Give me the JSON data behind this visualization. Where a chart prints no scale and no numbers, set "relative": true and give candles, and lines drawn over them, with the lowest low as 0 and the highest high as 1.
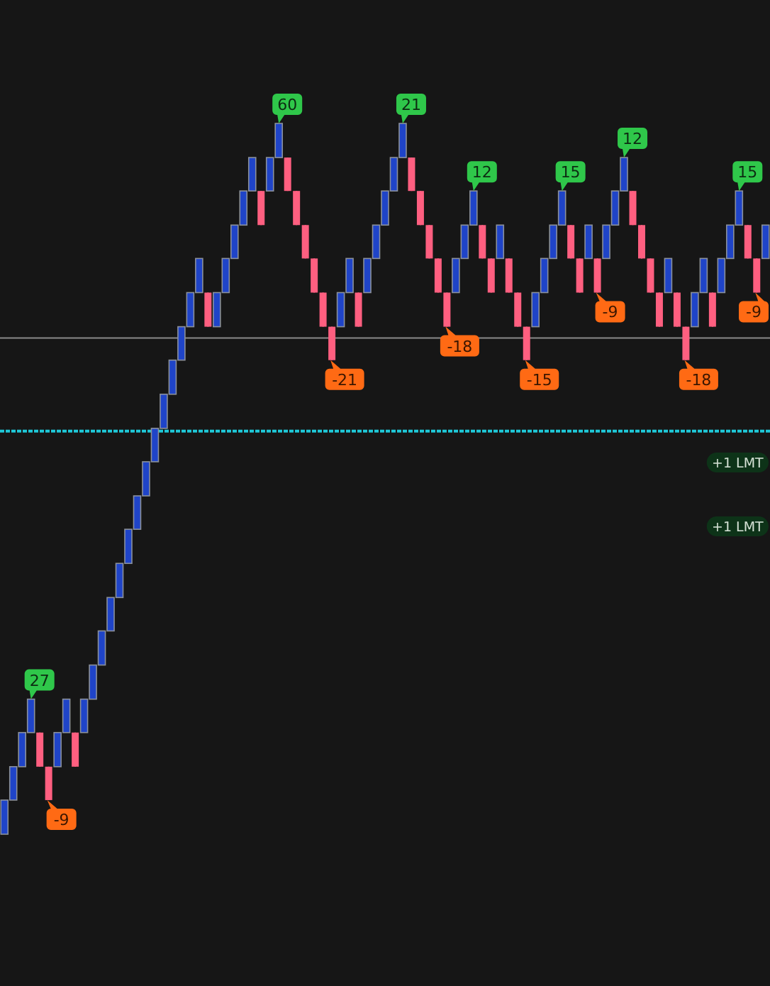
{
  "chart_data": {
    "type": "candlestick",
    "relative": true,
    "categories": [
      null,
      null,
      null,
      null,
      null,
      null,
      null,
      null,
      null,
      null,
      null,
      null,
      null,
      null,
      null,
      null,
      null,
      null,
      null,
      null,
      null,
      null,
      null,
      null,
      null,
      null,
      null,
      null,
      null,
      null,
      null,
      null,
      null,
      null,
      null,
      null,
      null,
      null,
      null,
      null,
      null,
      null,
      null,
      null,
      null,
      null,
      null,
      null,
      null,
      null,
      null,
      null,
      null,
      null,
      null,
      null,
      null,
      null,
      null,
      null,
      null,
      null,
      null,
      null,
      null,
      null,
      null,
      null,
      null,
      null,
      null,
      null,
      null,
      null,
      null,
      null,
      null,
      null,
      null,
      null,
      null,
      null,
      null,
      null,
      null,
      null,
      null
    ],
    "ohlc": [
      [
        0,
        0.048,
        0,
        0.048
      ],
      [
        0.048,
        0.095,
        0.048,
        0.095
      ],
      [
        0.095,
        0.143,
        0.095,
        0.143
      ],
      [
        0.143,
        0.19,
        0.143,
        0.19
      ],
      [
        0.143,
        0.143,
        0.095,
        0.095
      ],
      [
        0.095,
        0.095,
        0.048,
        0.048
      ],
      [
        0.095,
        0.143,
        0.095,
        0.143
      ],
      [
        0.143,
        0.19,
        0.143,
        0.19
      ],
      [
        0.143,
        0.143,
        0.095,
        0.095
      ],
      [
        0.143,
        0.19,
        0.143,
        0.19
      ],
      [
        0.19,
        0.238,
        0.19,
        0.238
      ],
      [
        0.238,
        0.286,
        0.238,
        0.286
      ],
      [
        0.286,
        0.333,
        0.286,
        0.333
      ],
      [
        0.333,
        0.381,
        0.333,
        0.381
      ],
      [
        0.381,
        0.429,
        0.381,
        0.429
      ],
      [
        0.429,
        0.476,
        0.429,
        0.476
      ],
      [
        0.476,
        0.524,
        0.476,
        0.524
      ],
      [
        0.524,
        0.571,
        0.524,
        0.571
      ],
      [
        0.571,
        0.619,
        0.571,
        0.619
      ],
      [
        0.619,
        0.667,
        0.619,
        0.667
      ],
      [
        0.667,
        0.714,
        0.667,
        0.714
      ],
      [
        0.714,
        0.762,
        0.714,
        0.762
      ],
      [
        0.762,
        0.81,
        0.762,
        0.81
      ],
      [
        0.762,
        0.762,
        0.714,
        0.714
      ],
      [
        0.714,
        0.762,
        0.714,
        0.762
      ],
      [
        0.762,
        0.81,
        0.762,
        0.81
      ],
      [
        0.81,
        0.857,
        0.81,
        0.857
      ],
      [
        0.857,
        0.905,
        0.857,
        0.905
      ],
      [
        0.905,
        0.952,
        0.905,
        0.952
      ],
      [
        0.905,
        0.905,
        0.857,
        0.857
      ],
      [
        0.905,
        0.952,
        0.905,
        0.952
      ],
      [
        0.952,
        1,
        0.952,
        1
      ],
      [
        0.952,
        0.952,
        0.905,
        0.905
      ],
      [
        0.905,
        0.905,
        0.857,
        0.857
      ],
      [
        0.857,
        0.857,
        0.81,
        0.81
      ],
      [
        0.81,
        0.81,
        0.762,
        0.762
      ],
      [
        0.762,
        0.762,
        0.714,
        0.714
      ],
      [
        0.714,
        0.714,
        0.667,
        0.667
      ],
      [
        0.714,
        0.762,
        0.714,
        0.762
      ],
      [
        0.762,
        0.81,
        0.762,
        0.81
      ],
      [
        0.762,
        0.762,
        0.714,
        0.714
      ],
      [
        0.762,
        0.81,
        0.762,
        0.81
      ],
      [
        0.81,
        0.857,
        0.81,
        0.857
      ],
      [
        0.857,
        0.905,
        0.857,
        0.905
      ],
      [
        0.905,
        0.952,
        0.905,
        0.952
      ],
      [
        0.952,
        1,
        0.952,
        1
      ],
      [
        0.952,
        0.952,
        0.905,
        0.905
      ],
      [
        0.905,
        0.905,
        0.857,
        0.857
      ],
      [
        0.857,
        0.857,
        0.81,
        0.81
      ],
      [
        0.81,
        0.81,
        0.762,
        0.762
      ],
      [
        0.762,
        0.762,
        0.714,
        0.714
      ],
      [
        0.762,
        0.81,
        0.762,
        0.81
      ],
      [
        0.81,
        0.857,
        0.81,
        0.857
      ],
      [
        0.857,
        0.905,
        0.857,
        0.905
      ],
      [
        0.857,
        0.857,
        0.81,
        0.81
      ],
      [
        0.81,
        0.81,
        0.762,
        0.762
      ],
      [
        0.81,
        0.857,
        0.81,
        0.857
      ],
      [
        0.81,
        0.81,
        0.762,
        0.762
      ],
      [
        0.762,
        0.762,
        0.714,
        0.714
      ],
      [
        0.714,
        0.714,
        0.667,
        0.667
      ],
      [
        0.714,
        0.762,
        0.714,
        0.762
      ],
      [
        0.762,
        0.81,
        0.762,
        0.81
      ],
      [
        0.81,
        0.857,
        0.81,
        0.857
      ],
      [
        0.857,
        0.905,
        0.857,
        0.905
      ],
      [
        0.857,
        0.857,
        0.81,
        0.81
      ],
      [
        0.81,
        0.81,
        0.762,
        0.762
      ],
      [
        0.81,
        0.857,
        0.81,
        0.857
      ],
      [
        0.81,
        0.81,
        0.762,
        0.762
      ],
      [
        0.81,
        0.857,
        0.81,
        0.857
      ],
      [
        0.857,
        0.905,
        0.857,
        0.905
      ],
      [
        0.905,
        0.952,
        0.905,
        0.952
      ],
      [
        0.905,
        0.905,
        0.857,
        0.857
      ],
      [
        0.857,
        0.857,
        0.81,
        0.81
      ],
      [
        0.81,
        0.81,
        0.762,
        0.762
      ],
      [
        0.762,
        0.762,
        0.714,
        0.714
      ],
      [
        0.762,
        0.81,
        0.762,
        0.81
      ],
      [
        0.762,
        0.762,
        0.714,
        0.714
      ],
      [
        0.714,
        0.714,
        0.667,
        0.667
      ],
      [
        0.714,
        0.762,
        0.714,
        0.762
      ],
      [
        0.762,
        0.81,
        0.762,
        0.81
      ],
      [
        0.762,
        0.762,
        0.714,
        0.714
      ],
      [
        0.762,
        0.81,
        0.762,
        0.81
      ],
      [
        0.81,
        0.857,
        0.81,
        0.857
      ],
      [
        0.857,
        0.905,
        0.857,
        0.905
      ],
      [
        0.857,
        0.857,
        0.81,
        0.81
      ],
      [
        0.81,
        0.81,
        0.762,
        0.762
      ],
      [
        0.81,
        0.857,
        0.81,
        0.857
      ]
    ],
    "ref_lines": [
      {
        "axis": "y",
        "value": 0.698,
        "color": "#8a8a8a"
      },
      {
        "axis": "y",
        "value": 0.567,
        "color": "#1fc8d8",
        "line_style": "dashed"
      }
    ],
    "annotations": [
      "27",
      "-9",
      "60",
      "-21",
      "21",
      "-18",
      "12",
      "-15",
      "15",
      "-9",
      "12",
      "-18",
      "15",
      "-9",
      "+1 LMT",
      "+1 LMT"
    ]
  }
}
